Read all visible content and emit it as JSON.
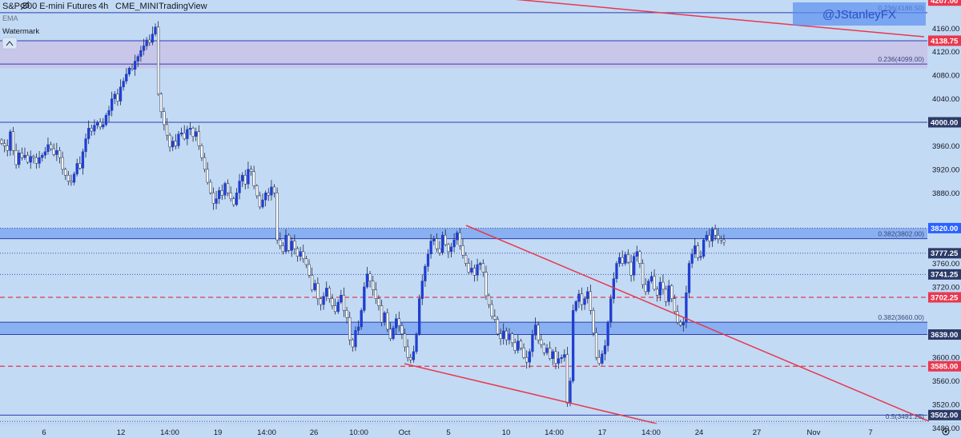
{
  "header": {
    "symbol": "S&P 500 E-mini Futures",
    "interval": "4h",
    "exchange": "CME_MINI",
    "source": "TradingView",
    "indicator": "EMA",
    "watermark_label": "Watermark"
  },
  "watermark_text": "@JStanleyFX",
  "colors": {
    "background": "#c3daf4",
    "bull": "#1f3fd1",
    "bear": "#ffffff",
    "wick": "#1f2a44",
    "horizontal": "#2b3fb0",
    "red": "#e8384f",
    "zone_purple": "#c9c3e8",
    "zone_blue": "#7fa8ee",
    "label_blue": "#2962ff",
    "label_red": "#e8384f",
    "label_dark": "#2b3a67"
  },
  "chart_data": {
    "type": "candlestick",
    "ylim": [
      3463,
      4208
    ],
    "x_ticks": [
      "6",
      "12",
      "14:00",
      "19",
      "14:00",
      "26",
      "10:00",
      "Oct",
      "5",
      "10",
      "14:00",
      "17",
      "14:00",
      "24",
      "27",
      "Nov",
      "7"
    ],
    "y_ticks": [
      "4160.00",
      "4120.00",
      "4080.00",
      "4040.00",
      "3960.00",
      "3920.00",
      "3880.00",
      "3760.00",
      "3720.00",
      "3600.00",
      "3560.00",
      "3520.00",
      "3480.00"
    ],
    "price_labels": [
      {
        "text": "4207.00",
        "value": 4207,
        "style": "red"
      },
      {
        "text": "4138.75",
        "value": 4138.75,
        "style": "red"
      },
      {
        "text": "4000.00",
        "value": 4000,
        "style": "dark"
      },
      {
        "text": "3820.00",
        "value": 3820,
        "style": "blue"
      },
      {
        "text": "3777.25",
        "value": 3777.25,
        "style": "dark"
      },
      {
        "text": "3741.25",
        "value": 3741.25,
        "style": "dark"
      },
      {
        "text": "3702.25",
        "value": 3702.25,
        "style": "red"
      },
      {
        "text": "3639.00",
        "value": 3639,
        "style": "dark"
      },
      {
        "text": "3585.00",
        "value": 3585,
        "style": "red"
      },
      {
        "text": "3502.00",
        "value": 3502,
        "style": "dark"
      }
    ],
    "fib_labels": [
      {
        "text": "0.236(4186.50)",
        "value": 4186.5
      },
      {
        "text": "0.236(4099.00)",
        "value": 4099
      },
      {
        "text": "0.382(3802.00)",
        "value": 3802
      },
      {
        "text": "0.382(3660.00)",
        "value": 3660
      },
      {
        "text": "0.5(3491.25)",
        "value": 3491.25
      }
    ],
    "zones": [
      {
        "low": 4092,
        "high": 4138.75,
        "style": "purple"
      },
      {
        "low": 3802,
        "high": 3820,
        "style": "blue"
      },
      {
        "low": 3639,
        "high": 3660,
        "style": "blue"
      }
    ],
    "horizontal_lines": [
      {
        "value": 4186.5,
        "style": "solid"
      },
      {
        "value": 4138.75,
        "style": "solid"
      },
      {
        "value": 4099,
        "style": "solid"
      },
      {
        "value": 4000,
        "style": "solid"
      },
      {
        "value": 3820,
        "style": "dotted"
      },
      {
        "value": 3802,
        "style": "solid"
      },
      {
        "value": 3777.25,
        "style": "dotted"
      },
      {
        "value": 3741.25,
        "style": "dotted"
      },
      {
        "value": 3702.25,
        "style": "dashed-red"
      },
      {
        "value": 3660,
        "style": "solid"
      },
      {
        "value": 3639,
        "style": "solid"
      },
      {
        "value": 3585,
        "style": "dashed-red"
      },
      {
        "value": 3502,
        "style": "solid"
      },
      {
        "value": 3491.25,
        "style": "dotted"
      }
    ],
    "closes": [
      3964,
      3960,
      3952,
      3984,
      3952,
      3928,
      3948,
      3940,
      3944,
      3932,
      3942,
      3940,
      3930,
      3940,
      3944,
      3950,
      3962,
      3955,
      3945,
      3952,
      3940,
      3920,
      3910,
      3900,
      3898,
      3912,
      3930,
      3922,
      3950,
      3972,
      3990,
      3985,
      3995,
      4000,
      3992,
      3996,
      4012,
      4020,
      4040,
      4048,
      4036,
      4060,
      4070,
      4082,
      4092,
      4090,
      4104,
      4112,
      4122,
      4130,
      4140,
      4136,
      4150,
      4162,
      4048,
      4018,
      3996,
      3978,
      3958,
      3968,
      3960,
      3980,
      3982,
      3972,
      3988,
      3990,
      3976,
      3984,
      3960,
      3940,
      3920,
      3898,
      3880,
      3862,
      3870,
      3884,
      3876,
      3896,
      3880,
      3870,
      3860,
      3880,
      3900,
      3910,
      3895,
      3920,
      3916,
      3892,
      3875,
      3856,
      3868,
      3880,
      3876,
      3890,
      3880,
      3800,
      3790,
      3780,
      3808,
      3782,
      3798,
      3785,
      3772,
      3780,
      3768,
      3758,
      3740,
      3715,
      3726,
      3700,
      3690,
      3704,
      3718,
      3700,
      3688,
      3678,
      3694,
      3706,
      3680,
      3668,
      3630,
      3618,
      3646,
      3652,
      3680,
      3720,
      3742,
      3730,
      3715,
      3700,
      3688,
      3660,
      3676,
      3648,
      3632,
      3650,
      3666,
      3654,
      3640,
      3618,
      3600,
      3596,
      3610,
      3640,
      3700,
      3730,
      3755,
      3776,
      3798,
      3802,
      3785,
      3778,
      3808,
      3792,
      3780,
      3788,
      3800,
      3812,
      3790,
      3774,
      3760,
      3745,
      3752,
      3740,
      3758,
      3760,
      3745,
      3705,
      3690,
      3670,
      3665,
      3640,
      3632,
      3645,
      3630,
      3640,
      3625,
      3612,
      3628,
      3616,
      3600,
      3592,
      3610,
      3638,
      3655,
      3630,
      3622,
      3608,
      3616,
      3598,
      3610,
      3590,
      3598,
      3600,
      3605,
      3522,
      3560,
      3680,
      3695,
      3708,
      3690,
      3700,
      3712,
      3680,
      3642,
      3600,
      3590,
      3606,
      3620,
      3660,
      3700,
      3734,
      3760,
      3770,
      3760,
      3775,
      3762,
      3740,
      3772,
      3780,
      3760,
      3724,
      3712,
      3730,
      3738,
      3716,
      3706,
      3728,
      3716,
      3695,
      3722,
      3700,
      3678,
      3660,
      3655,
      3660,
      3710,
      3760,
      3776,
      3790,
      3770,
      3772,
      3800,
      3808,
      3798,
      3818,
      3808,
      3802,
      3800,
      3796
    ]
  }
}
